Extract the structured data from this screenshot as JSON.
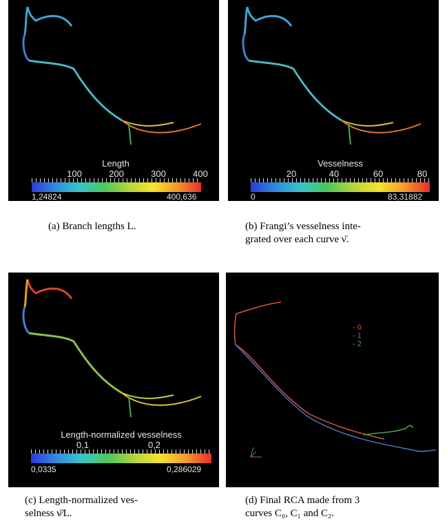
{
  "panels": {
    "a": {
      "colorbar_title": "Length",
      "ticks": [
        "100",
        "200",
        "300",
        "400"
      ],
      "min_label": "1,24824",
      "max_label": "400,636"
    },
    "b": {
      "colorbar_title": "Vesselness",
      "ticks": [
        "20",
        "40",
        "60",
        "80"
      ],
      "min_label": "0",
      "max_label": "83,31882"
    },
    "c": {
      "colorbar_title": "Length-normalized vesselness",
      "ticks": [
        "0,1",
        "0,2"
      ],
      "min_label": "0,0335",
      "max_label": "0,286029"
    },
    "d": {
      "legend": [
        {
          "label": "- 0",
          "color": "#d9553c"
        },
        {
          "label": "- 1",
          "color": "#4a78c8"
        },
        {
          "label": "- 2",
          "color": "#4aa84a"
        }
      ]
    }
  },
  "captions": {
    "a": "(a) Branch lengths L.",
    "b_line1": "(b) Frangi’s vesselness inte-",
    "b_line2": "grated over each curve ν̄.",
    "c_line1": "(c) Length-normalized ves-",
    "c_line2": "selness ν̄⁄L.",
    "d_line1": "(d) Final RCA made from 3",
    "d_line2": "curves C₀, C₁ and C₂."
  }
}
